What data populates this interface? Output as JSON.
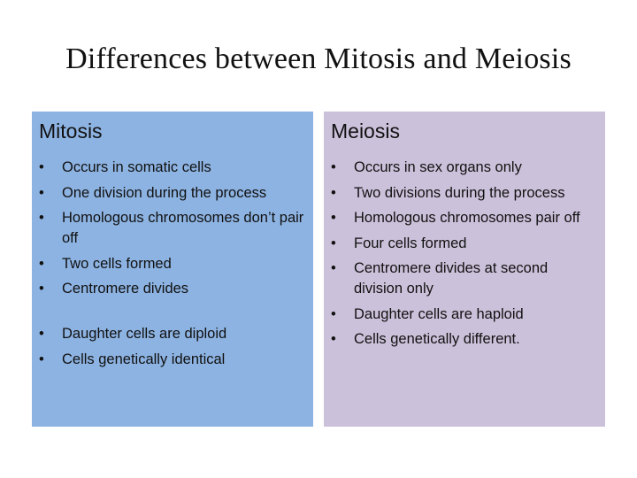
{
  "title": "Differences between Mitosis and Meiosis",
  "mitosis": {
    "heading": "Mitosis",
    "color": "#8db3e2",
    "items": [
      "Occurs in somatic cells",
      "One division during the process",
      "Homologous chromosomes don’t pair off",
      "Two cells formed",
      "Centromere divides",
      "Daughter cells  are diploid",
      "Cells genetically identical"
    ]
  },
  "meiosis": {
    "heading": "Meiosis",
    "color": "#ccc1da",
    "items": [
      "Occurs in sex organs only",
      "Two divisions during the process",
      "Homologous chromosomes pair off",
      "Four cells formed",
      "Centromere divides at second division only",
      "Daughter cells are haploid",
      "Cells genetically different."
    ]
  },
  "bullet_char": "•"
}
